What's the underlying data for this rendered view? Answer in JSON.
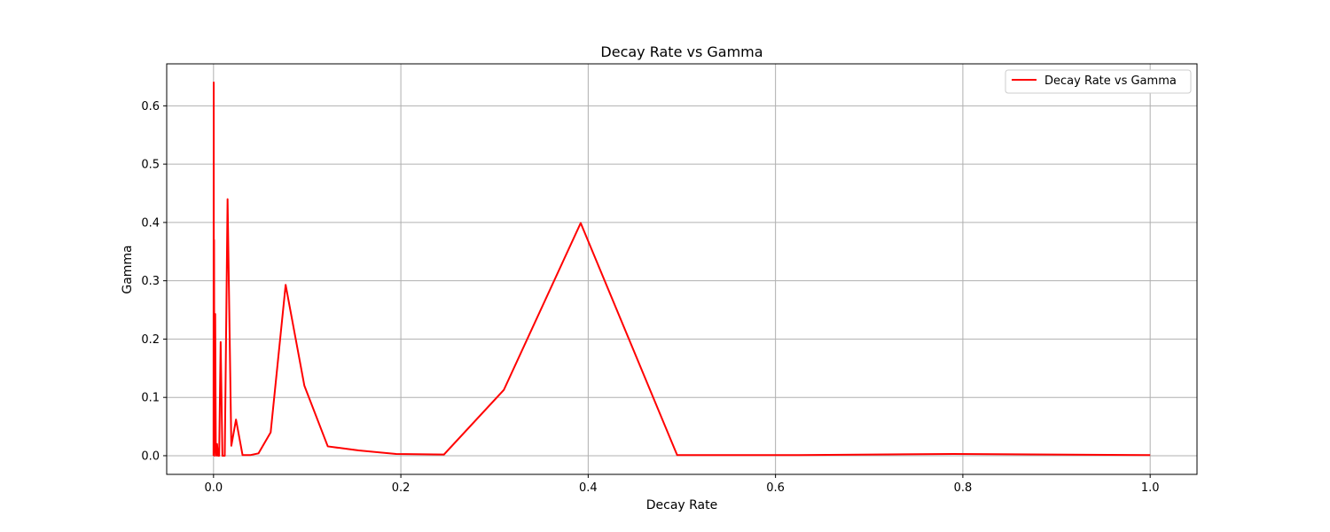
{
  "chart_data": {
    "type": "line",
    "title": "Decay Rate vs Gamma",
    "xlabel": "Decay Rate",
    "ylabel": "Gamma",
    "xlim": [
      -0.05,
      1.05
    ],
    "ylim": [
      -0.032,
      0.672
    ],
    "xticks": [
      0.0,
      0.2,
      0.4,
      0.6,
      0.8,
      1.0
    ],
    "xtick_labels": [
      "0.0",
      "0.2",
      "0.4",
      "0.6",
      "0.8",
      "1.0"
    ],
    "yticks": [
      0.0,
      0.1,
      0.2,
      0.3,
      0.4,
      0.5,
      0.6
    ],
    "ytick_labels": [
      "0.0",
      "0.1",
      "0.2",
      "0.3",
      "0.4",
      "0.5",
      "0.6"
    ],
    "grid": true,
    "legend_position": "top-right",
    "series": [
      {
        "name": "Decay Rate vs Gamma",
        "color": "#ff0000",
        "x": [
          0.0,
          0.0002,
          0.0004,
          0.0006,
          0.0009,
          0.0013,
          0.0018,
          0.0024,
          0.003,
          0.0038,
          0.0048,
          0.006,
          0.0076,
          0.0095,
          0.012,
          0.015,
          0.019,
          0.024,
          0.031,
          0.039,
          0.048,
          0.061,
          0.077,
          0.097,
          0.122,
          0.155,
          0.195,
          0.246,
          0.31,
          0.392,
          0.495,
          0.625,
          0.79,
          1.0
        ],
        "y": [
          0.0,
          0.64,
          0.1,
          0.37,
          0.0,
          0.1,
          0.243,
          0.02,
          0.0,
          0.02,
          0.0,
          0.0,
          0.195,
          0.0,
          0.0,
          0.44,
          0.017,
          0.062,
          0.001,
          0.001,
          0.004,
          0.04,
          0.293,
          0.12,
          0.016,
          0.009,
          0.003,
          0.002,
          0.113,
          0.399,
          0.001,
          0.001,
          0.003,
          0.001
        ]
      }
    ]
  }
}
